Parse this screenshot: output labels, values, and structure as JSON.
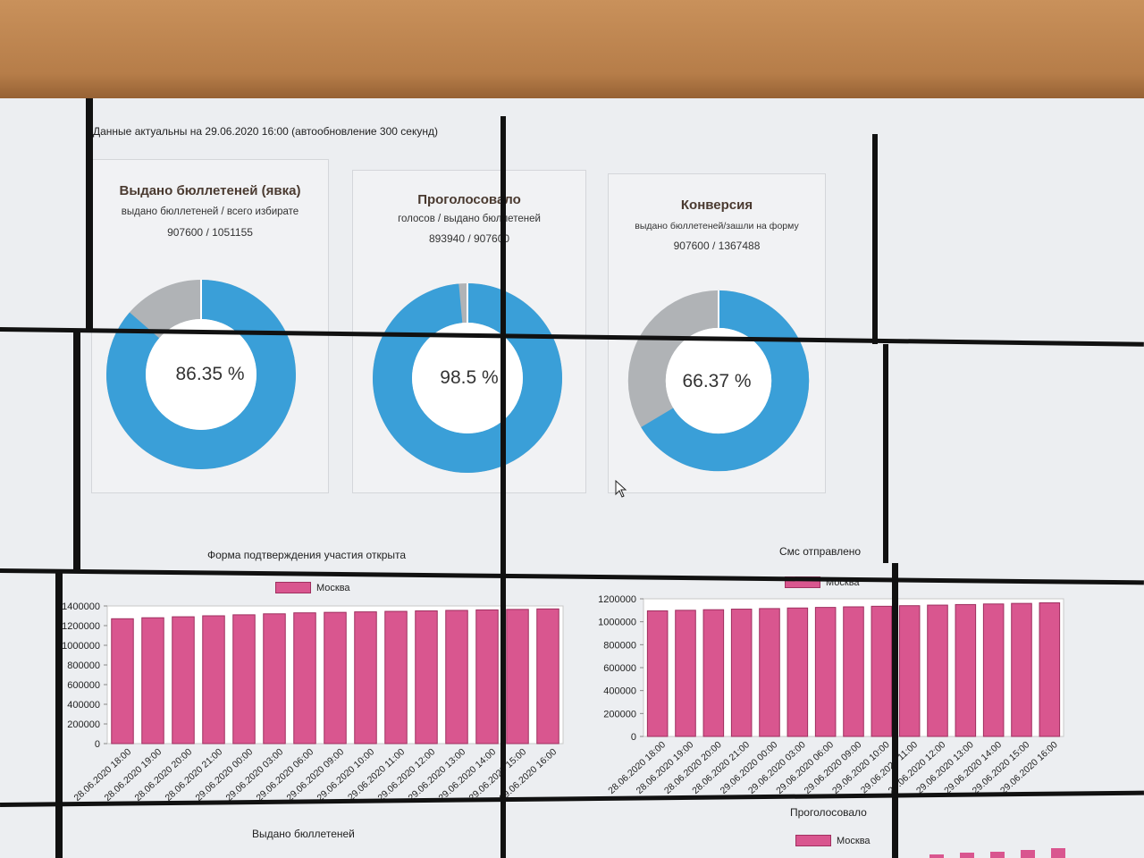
{
  "header": {
    "updated": "Данные актуальны на 29.06.2020 16:00 (автообновление 300 секунд)"
  },
  "kpis": [
    {
      "title": "Выдано бюллетеней (явка)",
      "subtitle": "выдано бюллетеней / всего избирате",
      "value": "907600 / 1051155",
      "percent_label": "86.35 %",
      "percent": 86.35
    },
    {
      "title": "Проголосовало",
      "subtitle": "голосов / выдано бюллетеней",
      "value": "893940 / 907600",
      "percent_label": "98.5 %",
      "percent": 98.5
    },
    {
      "title": "Конверсия",
      "subtitle": "выдано бюллетеней/зашли на форму",
      "value": "907600 / 1367488",
      "percent_label": "66.37 %",
      "percent": 66.37
    }
  ],
  "colors": {
    "donut_fill": "#3a9fd8",
    "donut_rest": "#b0b3b6",
    "bar": "#d9568f",
    "bar_border": "#9e2f5f"
  },
  "chart_data": [
    {
      "type": "bar",
      "title": "Форма подтверждения участия открыта",
      "categories": [
        "28.06.2020 18:00",
        "28.06.2020 19:00",
        "28.06.2020 20:00",
        "28.06.2020 21:00",
        "29.06.2020 00:00",
        "29.06.2020 03:00",
        "29.06.2020 06:00",
        "29.06.2020 09:00",
        "29.06.2020 10:00",
        "29.06.2020 11:00",
        "29.06.2020 12:00",
        "29.06.2020 13:00",
        "29.06.2020 14:00",
        "29.06.2020 15:00",
        "29.06.2020 16:00"
      ],
      "series": [
        {
          "name": "Москва",
          "values": [
            1270000,
            1280000,
            1290000,
            1300000,
            1310000,
            1320000,
            1330000,
            1335000,
            1340000,
            1345000,
            1350000,
            1355000,
            1360000,
            1365000,
            1370000
          ]
        }
      ],
      "ylim": [
        0,
        1400000
      ],
      "yticks": [
        "0",
        "200000",
        "400000",
        "600000",
        "800000",
        "1000000",
        "1200000",
        "1400000"
      ],
      "legend": "top"
    },
    {
      "type": "bar",
      "title": "Смс отправлено",
      "categories": [
        "28.06.2020 18:00",
        "28.06.2020 19:00",
        "28.06.2020 20:00",
        "28.06.2020 21:00",
        "29.06.2020 00:00",
        "29.06.2020 03:00",
        "29.06.2020 06:00",
        "29.06.2020 09:00",
        "29.06.2020 10:00",
        "29.06.2020 11:00",
        "29.06.2020 12:00",
        "29.06.2020 13:00",
        "29.06.2020 14:00",
        "29.06.2020 15:00",
        "29.06.2020 16:00"
      ],
      "series": [
        {
          "name": "Москва",
          "values": [
            1095000,
            1100000,
            1105000,
            1110000,
            1115000,
            1120000,
            1125000,
            1130000,
            1135000,
            1140000,
            1145000,
            1150000,
            1155000,
            1160000,
            1165000
          ]
        }
      ],
      "ylim": [
        0,
        1200000
      ],
      "yticks": [
        "0",
        "200000",
        "400000",
        "600000",
        "800000",
        "1000000",
        "1200000"
      ],
      "legend": "top"
    }
  ],
  "bottom": {
    "left_title": "Выдано бюллетеней",
    "right_title": "Проголосовало",
    "right_legend": "Москва"
  }
}
